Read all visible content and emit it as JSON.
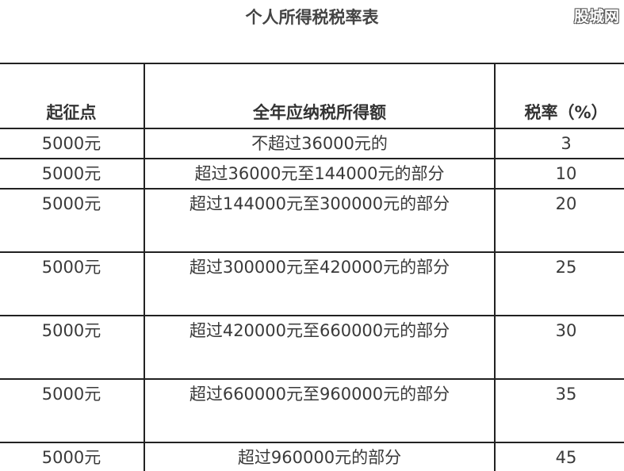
{
  "title": "个人所得税税率表",
  "watermark": "股城网",
  "table": {
    "headers": [
      "起征点",
      "全年应纳税所得额",
      "税率（%）"
    ],
    "rows": [
      {
        "threshold": "5000元",
        "income": "不超过36000元的",
        "rate": "3"
      },
      {
        "threshold": "5000元",
        "income": "超过36000元至144000元的部分",
        "rate": "10"
      },
      {
        "threshold": "5000元",
        "income": "超过144000元至300000元的部分",
        "rate": "20"
      },
      {
        "threshold": "5000元",
        "income": "超过300000元至420000元的部分",
        "rate": "25"
      },
      {
        "threshold": "5000元",
        "income": "超过420000元至660000元的部分",
        "rate": "30"
      },
      {
        "threshold": "5000元",
        "income": "超过660000元至960000元的部分",
        "rate": "35"
      },
      {
        "threshold": "5000元",
        "income": "超过960000元的部分",
        "rate": "45"
      }
    ]
  }
}
